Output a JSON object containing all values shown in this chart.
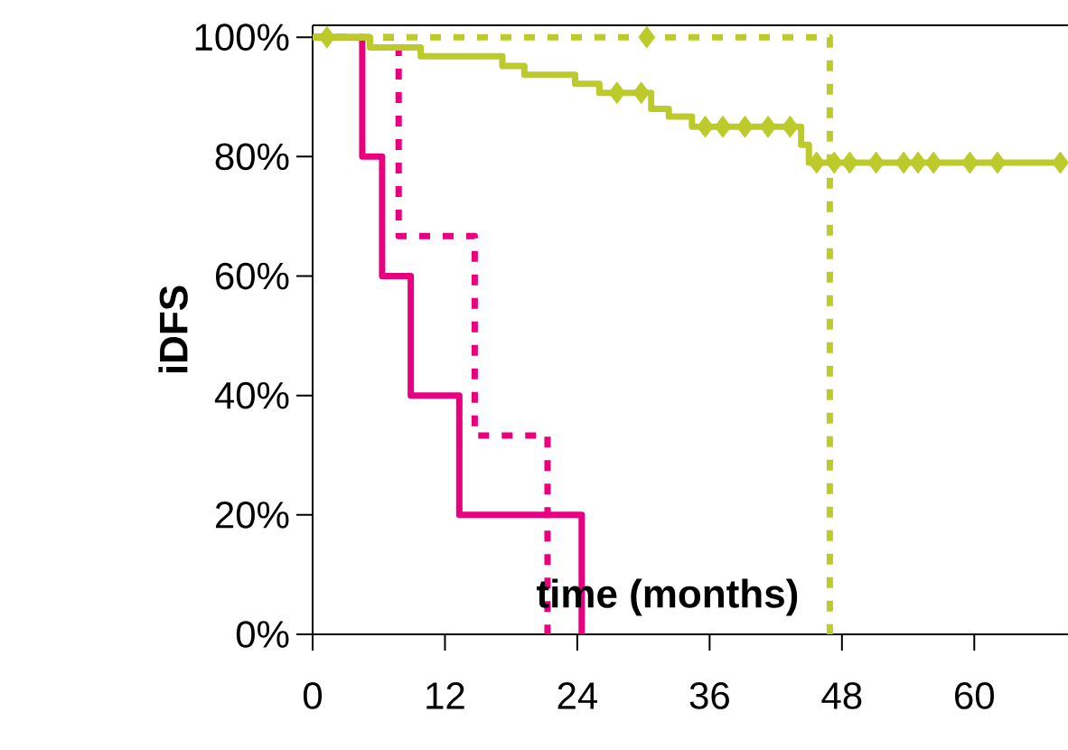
{
  "chart_data": {
    "type": "step",
    "xlabel": "time (months)",
    "ylabel": "iDFS",
    "xlim": [
      0,
      68.5
    ],
    "ylim": [
      0,
      102
    ],
    "xticks": [
      0,
      12,
      24,
      36,
      48,
      60
    ],
    "yticks": [
      {
        "value": 0,
        "label": "0%"
      },
      {
        "value": 20,
        "label": "20%"
      },
      {
        "value": 40,
        "label": "40%"
      },
      {
        "value": 60,
        "label": "60%"
      },
      {
        "value": 80,
        "label": "80%"
      },
      {
        "value": 100,
        "label": "100%"
      }
    ],
    "series": [
      {
        "color": "#e8007f",
        "line_style": "solid",
        "x": [
          0,
          4.5,
          6.3,
          8.9,
          13.3,
          24.4
        ],
        "values": [
          100,
          80,
          60,
          40,
          20,
          0
        ]
      },
      {
        "color": "#e8007f",
        "line_style": "dashed",
        "x": [
          0,
          7.8,
          14.7,
          21.3
        ],
        "values": [
          100,
          66.7,
          33.3,
          0
        ]
      },
      {
        "color": "#bccb2a",
        "line_style": "solid",
        "x": [
          0,
          5.2,
          9.8,
          17.2,
          19.2,
          23.8,
          26,
          30.7,
          32.3,
          34.4,
          44.3,
          45,
          67.8
        ],
        "values": [
          100,
          98.3,
          96.8,
          95.2,
          93.7,
          92.2,
          90.7,
          88,
          86.7,
          85,
          82,
          79,
          79
        ]
      },
      {
        "color": "#bccb2a",
        "line_style": "dashed",
        "x": [
          0,
          46.9
        ],
        "values": [
          100,
          0
        ]
      },
      {
        "type": "scatter",
        "color": "#bccb2a",
        "marker": "diamond",
        "x": [
          27.6,
          29.8,
          35.6,
          37.2,
          39.2,
          41.3,
          43.3,
          45.7,
          47.3,
          48.7,
          51.1,
          53.6,
          54.9,
          56.3,
          59.6,
          62.1,
          67.8
        ],
        "values": [
          90.7,
          90.7,
          85,
          85,
          85,
          85,
          85,
          79,
          79,
          79,
          79,
          79,
          79,
          79,
          79,
          79,
          79
        ]
      },
      {
        "type": "scatter",
        "color": "#bccb2a",
        "marker": "diamond",
        "x": [
          1.3,
          30.3
        ],
        "values": [
          100,
          100
        ]
      }
    ]
  }
}
